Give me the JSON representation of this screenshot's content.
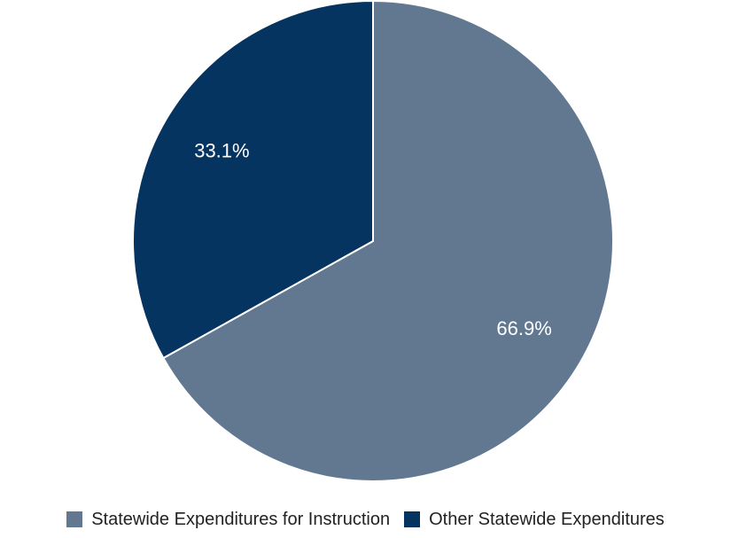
{
  "chart_data": {
    "type": "pie",
    "title": "",
    "series": [
      {
        "name": "Statewide Expenditures for Instruction",
        "value": 66.9,
        "label": "66.9%",
        "color": "#627891"
      },
      {
        "name": "Other Statewide Expenditures",
        "value": 33.1,
        "label": "33.1%",
        "color": "#053461"
      }
    ],
    "start_angle_deg": 0,
    "direction": "clockwise",
    "legend_position": "bottom"
  },
  "legend": {
    "items": [
      {
        "label": "Statewide Expenditures for Instruction",
        "color": "#627891"
      },
      {
        "label": "Other Statewide Expenditures",
        "color": "#053461"
      }
    ]
  }
}
